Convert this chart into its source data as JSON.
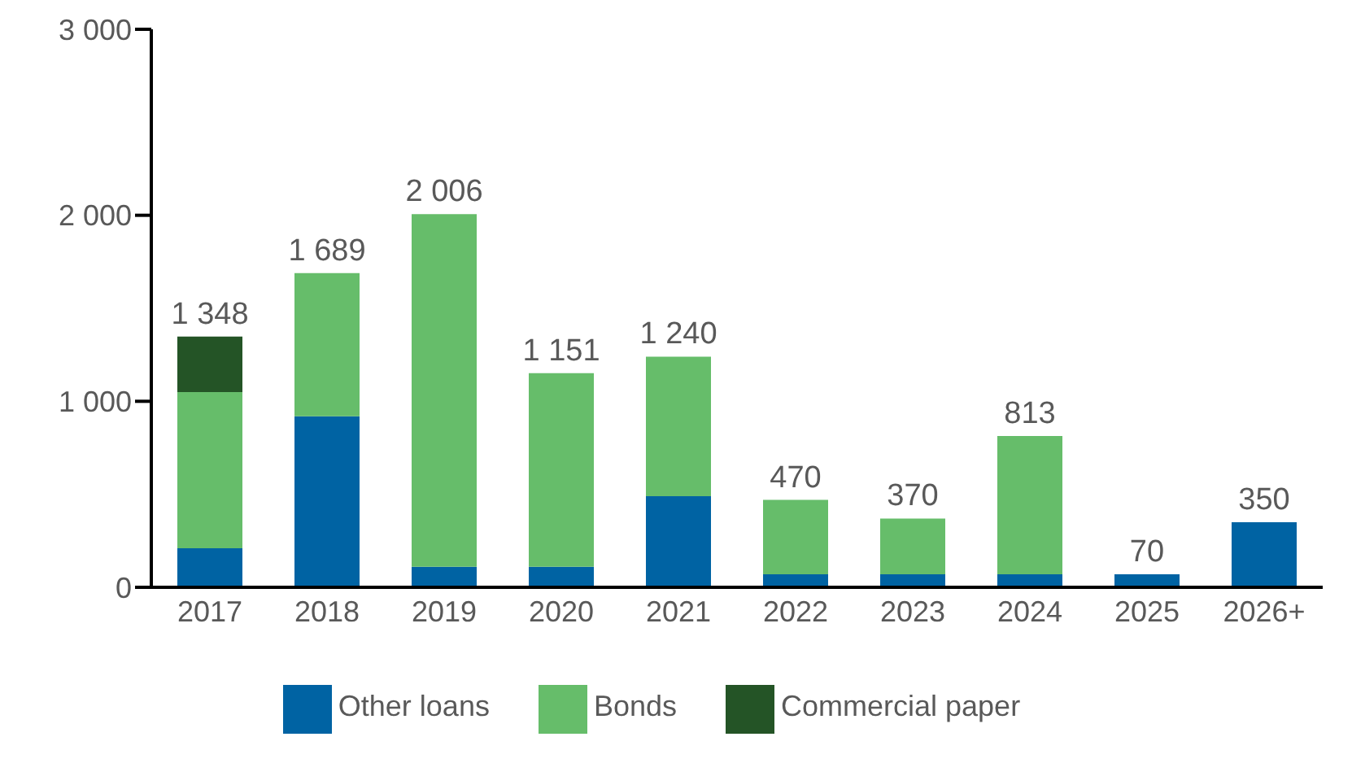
{
  "chart_data": {
    "type": "bar",
    "stacked": true,
    "categories": [
      "2017",
      "2018",
      "2019",
      "2020",
      "2021",
      "2022",
      "2023",
      "2024",
      "2025",
      "2026+"
    ],
    "series": [
      {
        "name": "Other loans",
        "color": "#0063a3",
        "values": [
          210,
          920,
          110,
          110,
          490,
          70,
          70,
          70,
          70,
          350
        ]
      },
      {
        "name": "Bonds",
        "color": "#66bd6a",
        "values": [
          840,
          769,
          1896,
          1041,
          750,
          400,
          300,
          743,
          null,
          null
        ]
      },
      {
        "name": "Commercial paper",
        "color": "#245426",
        "values": [
          298,
          null,
          null,
          null,
          null,
          null,
          null,
          null,
          null,
          null
        ]
      }
    ],
    "totals": [
      "1 348",
      "1 689",
      "2 006",
      "1 151",
      "1 240",
      "470",
      "370",
      "813",
      "70",
      "350"
    ],
    "ylim": [
      0,
      3000
    ],
    "yticks": [
      0,
      {
        "value": 1000,
        "label": "1 000"
      },
      {
        "value": 2000,
        "label": "2 000"
      },
      {
        "value": 3000,
        "label": "3 000"
      }
    ],
    "grid": false,
    "legend": "bottom"
  }
}
